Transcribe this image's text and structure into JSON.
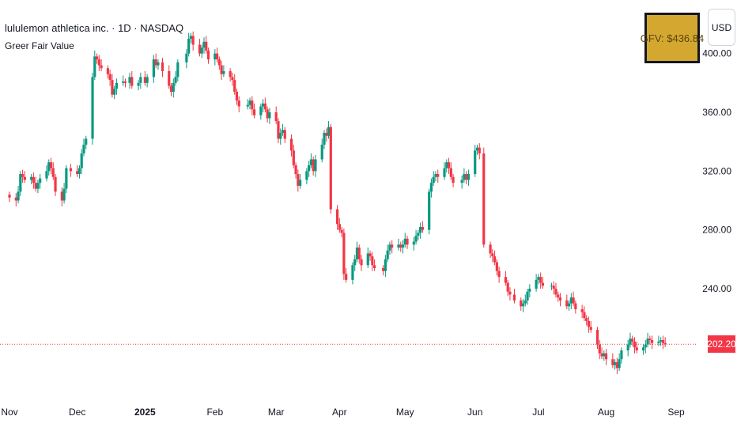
{
  "header": {
    "title": "lululemon athletica inc. · 1D · NASDAQ",
    "indicator": "Greer Fair Value"
  },
  "gfv_label": "GFV: $436.84",
  "currency": "USD",
  "last_price_label": "202.20",
  "colors": {
    "up": "#089981",
    "down": "#f23645",
    "gfv_bg": "#d4a830"
  },
  "chart_data": {
    "type": "candlestick",
    "y_ticks": [
      "400.00",
      "360.00",
      "320.00",
      "280.00",
      "240.00"
    ],
    "y_tick_values": [
      400,
      360,
      320,
      280,
      240
    ],
    "x_ticks": [
      "Nov",
      "Dec",
      "2025",
      "Feb",
      "Mar",
      "Apr",
      "May",
      "Jun",
      "Jul",
      "Aug",
      "Sep"
    ],
    "x_tick_dates": [
      "2024-11-01",
      "2024-12-02",
      "2025-01-02",
      "2025-02-03",
      "2025-03-03",
      "2025-04-01",
      "2025-05-01",
      "2025-06-02",
      "2025-07-01",
      "2025-08-01",
      "2025-09-02"
    ],
    "last_price": 202.2,
    "series": [
      {
        "date": "2024-11-01",
        "close": 302
      },
      {
        "date": "2024-11-04",
        "close": 300
      },
      {
        "date": "2024-11-05",
        "close": 306
      },
      {
        "date": "2024-11-06",
        "close": 318
      },
      {
        "date": "2024-11-07",
        "close": 316
      },
      {
        "date": "2024-11-08",
        "close": 314
      },
      {
        "date": "2024-11-11",
        "close": 316
      },
      {
        "date": "2024-11-12",
        "close": 312
      },
      {
        "date": "2024-11-13",
        "close": 308
      },
      {
        "date": "2024-11-14",
        "close": 312
      },
      {
        "date": "2024-11-15",
        "close": 315
      },
      {
        "date": "2024-11-18",
        "close": 320
      },
      {
        "date": "2024-11-19",
        "close": 326
      },
      {
        "date": "2024-11-20",
        "close": 322
      },
      {
        "date": "2024-11-21",
        "close": 316
      },
      {
        "date": "2024-11-22",
        "close": 306
      },
      {
        "date": "2024-11-25",
        "close": 300
      },
      {
        "date": "2024-11-26",
        "close": 308
      },
      {
        "date": "2024-11-27",
        "close": 322
      },
      {
        "date": "2024-11-29",
        "close": 320
      },
      {
        "date": "2024-12-02",
        "close": 318
      },
      {
        "date": "2024-12-03",
        "close": 322
      },
      {
        "date": "2024-12-04",
        "close": 332
      },
      {
        "date": "2024-12-05",
        "close": 338
      },
      {
        "date": "2024-12-06",
        "close": 342
      },
      {
        "date": "2024-12-09",
        "close": 384
      },
      {
        "date": "2024-12-10",
        "close": 398
      },
      {
        "date": "2024-12-11",
        "close": 396
      },
      {
        "date": "2024-12-12",
        "close": 392
      },
      {
        "date": "2024-12-13",
        "close": 390
      },
      {
        "date": "2024-12-16",
        "close": 386
      },
      {
        "date": "2024-12-17",
        "close": 382
      },
      {
        "date": "2024-12-18",
        "close": 372
      },
      {
        "date": "2024-12-19",
        "close": 376
      },
      {
        "date": "2024-12-20",
        "close": 380
      },
      {
        "date": "2024-12-23",
        "close": 381
      },
      {
        "date": "2024-12-24",
        "close": 380
      },
      {
        "date": "2024-12-26",
        "close": 384
      },
      {
        "date": "2024-12-27",
        "close": 378
      },
      {
        "date": "2024-12-30",
        "close": 380
      },
      {
        "date": "2024-12-31",
        "close": 384
      },
      {
        "date": "2025-01-02",
        "close": 380
      },
      {
        "date": "2025-01-03",
        "close": 384
      },
      {
        "date": "2025-01-06",
        "close": 396
      },
      {
        "date": "2025-01-07",
        "close": 392
      },
      {
        "date": "2025-01-08",
        "close": 394
      },
      {
        "date": "2025-01-10",
        "close": 388
      },
      {
        "date": "2025-01-13",
        "close": 378
      },
      {
        "date": "2025-01-14",
        "close": 374
      },
      {
        "date": "2025-01-15",
        "close": 380
      },
      {
        "date": "2025-01-16",
        "close": 384
      },
      {
        "date": "2025-01-17",
        "close": 394
      },
      {
        "date": "2025-01-21",
        "close": 400
      },
      {
        "date": "2025-01-22",
        "close": 410
      },
      {
        "date": "2025-01-23",
        "close": 412
      },
      {
        "date": "2025-01-24",
        "close": 406
      },
      {
        "date": "2025-01-27",
        "close": 400
      },
      {
        "date": "2025-01-28",
        "close": 404
      },
      {
        "date": "2025-01-29",
        "close": 408
      },
      {
        "date": "2025-01-30",
        "close": 402
      },
      {
        "date": "2025-01-31",
        "close": 396
      },
      {
        "date": "2025-02-03",
        "close": 400
      },
      {
        "date": "2025-02-04",
        "close": 396
      },
      {
        "date": "2025-02-05",
        "close": 392
      },
      {
        "date": "2025-02-06",
        "close": 386
      },
      {
        "date": "2025-02-07",
        "close": 388
      },
      {
        "date": "2025-02-10",
        "close": 384
      },
      {
        "date": "2025-02-11",
        "close": 382
      },
      {
        "date": "2025-02-12",
        "close": 374
      },
      {
        "date": "2025-02-13",
        "close": 368
      },
      {
        "date": "2025-02-14",
        "close": 364
      },
      {
        "date": "2025-02-18",
        "close": 365
      },
      {
        "date": "2025-02-19",
        "close": 368
      },
      {
        "date": "2025-02-20",
        "close": 362
      },
      {
        "date": "2025-02-21",
        "close": 358
      },
      {
        "date": "2025-02-24",
        "close": 364
      },
      {
        "date": "2025-02-25",
        "close": 366
      },
      {
        "date": "2025-02-26",
        "close": 362
      },
      {
        "date": "2025-02-27",
        "close": 356
      },
      {
        "date": "2025-02-28",
        "close": 360
      },
      {
        "date": "2025-03-03",
        "close": 354
      },
      {
        "date": "2025-03-04",
        "close": 342
      },
      {
        "date": "2025-03-05",
        "close": 346
      },
      {
        "date": "2025-03-06",
        "close": 348
      },
      {
        "date": "2025-03-07",
        "close": 342
      },
      {
        "date": "2025-03-10",
        "close": 334
      },
      {
        "date": "2025-03-11",
        "close": 324
      },
      {
        "date": "2025-03-12",
        "close": 318
      },
      {
        "date": "2025-03-13",
        "close": 310
      },
      {
        "date": "2025-03-14",
        "close": 314
      },
      {
        "date": "2025-03-17",
        "close": 320
      },
      {
        "date": "2025-03-18",
        "close": 324
      },
      {
        "date": "2025-03-19",
        "close": 328
      },
      {
        "date": "2025-03-20",
        "close": 320
      },
      {
        "date": "2025-03-21",
        "close": 328
      },
      {
        "date": "2025-03-24",
        "close": 338
      },
      {
        "date": "2025-03-25",
        "close": 346
      },
      {
        "date": "2025-03-26",
        "close": 344
      },
      {
        "date": "2025-03-27",
        "close": 350
      },
      {
        "date": "2025-03-28",
        "close": 294
      },
      {
        "date": "2025-03-31",
        "close": 284
      },
      {
        "date": "2025-04-01",
        "close": 280
      },
      {
        "date": "2025-04-02",
        "close": 278
      },
      {
        "date": "2025-04-03",
        "close": 250
      },
      {
        "date": "2025-04-04",
        "close": 246
      },
      {
        "date": "2025-04-07",
        "close": 256
      },
      {
        "date": "2025-04-08",
        "close": 260
      },
      {
        "date": "2025-04-09",
        "close": 268
      },
      {
        "date": "2025-04-10",
        "close": 260
      },
      {
        "date": "2025-04-11",
        "close": 256
      },
      {
        "date": "2025-04-14",
        "close": 264
      },
      {
        "date": "2025-04-15",
        "close": 262
      },
      {
        "date": "2025-04-16",
        "close": 256
      },
      {
        "date": "2025-04-17",
        "close": 254
      },
      {
        "date": "2025-04-21",
        "close": 252
      },
      {
        "date": "2025-04-22",
        "close": 260
      },
      {
        "date": "2025-04-23",
        "close": 266
      },
      {
        "date": "2025-04-24",
        "close": 270
      },
      {
        "date": "2025-04-25",
        "close": 268
      },
      {
        "date": "2025-04-28",
        "close": 270
      },
      {
        "date": "2025-04-29",
        "close": 268
      },
      {
        "date": "2025-04-30",
        "close": 270
      },
      {
        "date": "2025-05-01",
        "close": 274
      },
      {
        "date": "2025-05-02",
        "close": 270
      },
      {
        "date": "2025-05-05",
        "close": 272
      },
      {
        "date": "2025-05-06",
        "close": 276
      },
      {
        "date": "2025-05-07",
        "close": 278
      },
      {
        "date": "2025-05-08",
        "close": 282
      },
      {
        "date": "2025-05-09",
        "close": 280
      },
      {
        "date": "2025-05-12",
        "close": 306
      },
      {
        "date": "2025-05-13",
        "close": 312
      },
      {
        "date": "2025-05-14",
        "close": 316
      },
      {
        "date": "2025-05-15",
        "close": 318
      },
      {
        "date": "2025-05-16",
        "close": 316
      },
      {
        "date": "2025-05-19",
        "close": 322
      },
      {
        "date": "2025-05-20",
        "close": 326
      },
      {
        "date": "2025-05-21",
        "close": 322
      },
      {
        "date": "2025-05-22",
        "close": 316
      },
      {
        "date": "2025-05-23",
        "close": 312
      },
      {
        "date": "2025-05-27",
        "close": 314
      },
      {
        "date": "2025-05-28",
        "close": 318
      },
      {
        "date": "2025-05-29",
        "close": 314
      },
      {
        "date": "2025-05-30",
        "close": 318
      },
      {
        "date": "2025-06-02",
        "close": 334
      },
      {
        "date": "2025-06-03",
        "close": 336
      },
      {
        "date": "2025-06-04",
        "close": 332
      },
      {
        "date": "2025-06-06",
        "close": 270
      },
      {
        "date": "2025-06-09",
        "close": 264
      },
      {
        "date": "2025-06-10",
        "close": 262
      },
      {
        "date": "2025-06-11",
        "close": 258
      },
      {
        "date": "2025-06-12",
        "close": 252
      },
      {
        "date": "2025-06-13",
        "close": 248
      },
      {
        "date": "2025-06-16",
        "close": 244
      },
      {
        "date": "2025-06-17",
        "close": 238
      },
      {
        "date": "2025-06-18",
        "close": 236
      },
      {
        "date": "2025-06-20",
        "close": 232
      },
      {
        "date": "2025-06-23",
        "close": 228
      },
      {
        "date": "2025-06-24",
        "close": 230
      },
      {
        "date": "2025-06-25",
        "close": 232
      },
      {
        "date": "2025-06-26",
        "close": 238
      },
      {
        "date": "2025-06-27",
        "close": 240
      },
      {
        "date": "2025-06-30",
        "close": 246
      },
      {
        "date": "2025-07-01",
        "close": 248
      },
      {
        "date": "2025-07-02",
        "close": 244
      },
      {
        "date": "2025-07-03",
        "close": 242
      },
      {
        "date": "2025-07-07",
        "close": 242
      },
      {
        "date": "2025-07-08",
        "close": 240
      },
      {
        "date": "2025-07-09",
        "close": 236
      },
      {
        "date": "2025-07-10",
        "close": 234
      },
      {
        "date": "2025-07-11",
        "close": 232
      },
      {
        "date": "2025-07-14",
        "close": 228
      },
      {
        "date": "2025-07-15",
        "close": 230
      },
      {
        "date": "2025-07-16",
        "close": 234
      },
      {
        "date": "2025-07-17",
        "close": 230
      },
      {
        "date": "2025-07-18",
        "close": 226
      },
      {
        "date": "2025-07-21",
        "close": 224
      },
      {
        "date": "2025-07-22",
        "close": 220
      },
      {
        "date": "2025-07-23",
        "close": 218
      },
      {
        "date": "2025-07-24",
        "close": 214
      },
      {
        "date": "2025-07-25",
        "close": 212
      },
      {
        "date": "2025-07-28",
        "close": 202
      },
      {
        "date": "2025-07-29",
        "close": 196
      },
      {
        "date": "2025-07-30",
        "close": 194
      },
      {
        "date": "2025-07-31",
        "close": 196
      },
      {
        "date": "2025-08-01",
        "close": 192
      },
      {
        "date": "2025-08-04",
        "close": 188
      },
      {
        "date": "2025-08-05",
        "close": 190
      },
      {
        "date": "2025-08-06",
        "close": 186
      },
      {
        "date": "2025-08-07",
        "close": 192
      },
      {
        "date": "2025-08-08",
        "close": 198
      },
      {
        "date": "2025-08-11",
        "close": 202
      },
      {
        "date": "2025-08-12",
        "close": 206
      },
      {
        "date": "2025-08-13",
        "close": 204
      },
      {
        "date": "2025-08-14",
        "close": 200
      },
      {
        "date": "2025-08-15",
        "close": 198
      },
      {
        "date": "2025-08-18",
        "close": 200
      },
      {
        "date": "2025-08-19",
        "close": 202
      },
      {
        "date": "2025-08-20",
        "close": 206
      },
      {
        "date": "2025-08-21",
        "close": 205
      },
      {
        "date": "2025-08-22",
        "close": 203
      },
      {
        "date": "2025-08-25",
        "close": 204
      },
      {
        "date": "2025-08-26",
        "close": 205
      },
      {
        "date": "2025-08-27",
        "close": 203
      },
      {
        "date": "2025-08-28",
        "close": 202.2
      }
    ]
  }
}
